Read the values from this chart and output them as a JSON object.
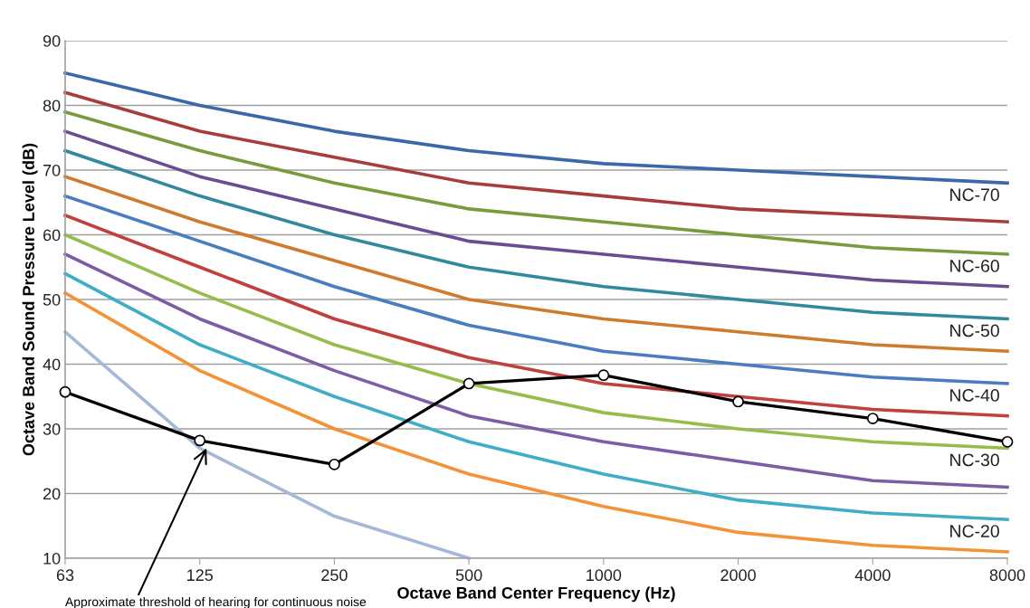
{
  "chart_data": {
    "type": "line",
    "xlabel": "Octave Band Center Frequency (Hz)",
    "ylabel": "Octave Band Sound Pressure Level (dB)",
    "categories": [
      "63",
      "125",
      "250",
      "500",
      "1000",
      "2000",
      "4000",
      "8000"
    ],
    "ylim": [
      10,
      90
    ],
    "yticks": [
      10,
      20,
      30,
      40,
      50,
      60,
      70,
      80,
      90
    ],
    "grid": "y",
    "legend": false,
    "marker": "none",
    "line_style": "solid",
    "series": [
      {
        "name": "NC-70",
        "color": "#3a68a8",
        "values": [
          85,
          80,
          76,
          73,
          71,
          70,
          69,
          68
        ]
      },
      {
        "color": "#a83c3a",
        "values": [
          82,
          76,
          72,
          68,
          66,
          64,
          63,
          62
        ]
      },
      {
        "name": "NC-60",
        "color": "#7a9a3e",
        "values": [
          79,
          73,
          68,
          64,
          62,
          60,
          58,
          57
        ]
      },
      {
        "color": "#6a4c93",
        "values": [
          76,
          69,
          64,
          59,
          57,
          55,
          53,
          52
        ]
      },
      {
        "name": "NC-50",
        "color": "#31899e",
        "values": [
          73,
          66,
          60,
          55,
          52,
          50,
          48,
          47
        ]
      },
      {
        "color": "#d07a2e",
        "values": [
          69,
          62,
          56,
          50,
          47,
          45,
          43,
          42
        ]
      },
      {
        "name": "NC-40",
        "color": "#4a7cc0",
        "values": [
          66,
          59,
          52,
          46,
          42,
          40,
          38,
          37
        ]
      },
      {
        "color": "#c0403e",
        "values": [
          63,
          55,
          47,
          41,
          37,
          35,
          33,
          32
        ]
      },
      {
        "name": "NC-30",
        "color": "#94bd4c",
        "values": [
          60,
          51,
          43,
          37,
          32.5,
          30,
          28,
          27
        ]
      },
      {
        "color": "#7d5ca6",
        "values": [
          57,
          47,
          39,
          32,
          28,
          25,
          22,
          21
        ]
      },
      {
        "name": "NC-20",
        "color": "#3fadc6",
        "values": [
          54,
          43,
          35,
          28,
          23,
          19,
          17,
          16
        ]
      },
      {
        "color": "#f39237",
        "values": [
          51,
          39,
          30,
          23,
          18,
          14,
          12,
          11
        ]
      },
      {
        "color": "#a5b8d8",
        "values": [
          45,
          27,
          16.5,
          10,
          null,
          null,
          null,
          null
        ]
      },
      {
        "color": "#000000",
        "marker": "circle",
        "values": [
          35.7,
          28.2,
          24.5,
          37,
          38.3,
          34.2,
          31.6,
          28
        ]
      }
    ],
    "annotations": [
      {
        "text": "Approximate threshold of hearing for continuous noise",
        "x": "125",
        "y": 27
      }
    ]
  }
}
